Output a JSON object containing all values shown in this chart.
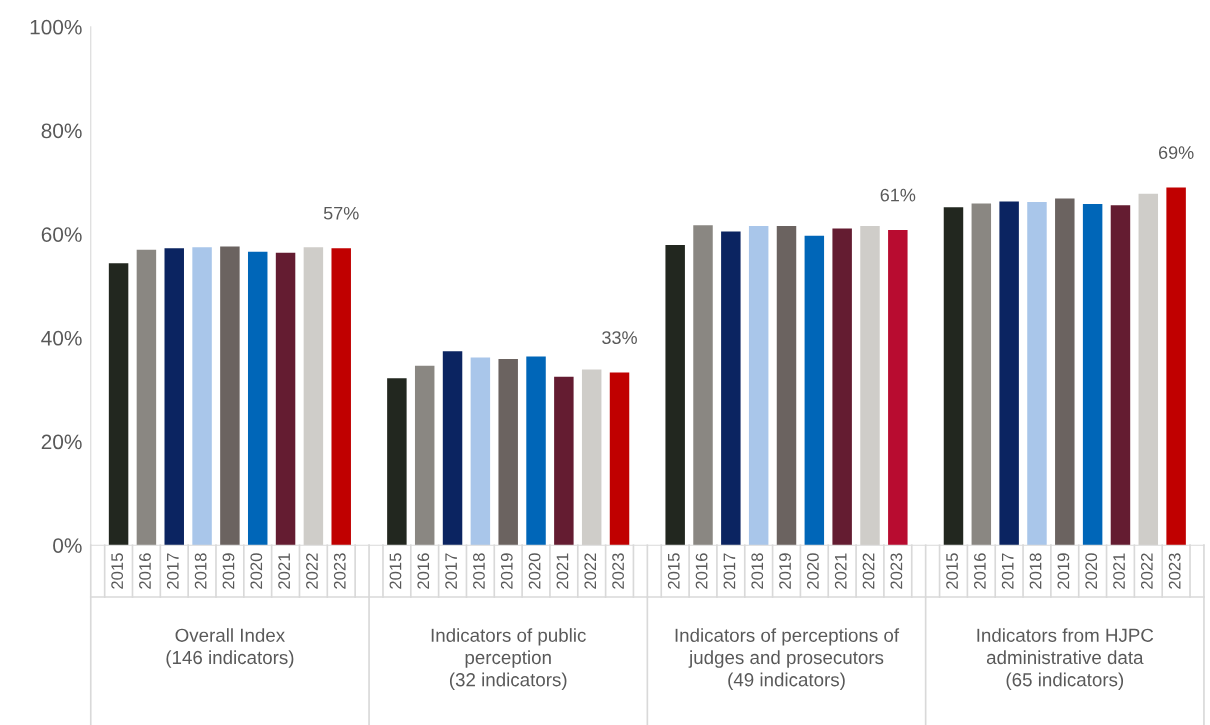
{
  "chart_data": {
    "type": "bar",
    "categories": [
      "Overall Index\n(146 indicators)",
      "Indicators of public\nperception\n(32 indicators)",
      "Indicators of perceptions of\njudges and prosecutors\n(49 indicators)",
      "Indicators from HJPC\nadministrative data\n(65 indicators)"
    ],
    "series": [
      {
        "name": "2015",
        "color": "#22271f",
        "values": [
          54.4,
          32.2,
          57.9,
          65.2
        ]
      },
      {
        "name": "2016",
        "color": "#8a8782",
        "values": [
          57.0,
          34.6,
          61.7,
          65.9
        ]
      },
      {
        "name": "2017",
        "color": "#0b2461",
        "values": [
          57.3,
          37.4,
          60.5,
          66.3
        ]
      },
      {
        "name": "2018",
        "color": "#a9c6ea",
        "values": [
          57.5,
          36.2,
          61.6,
          66.2
        ]
      },
      {
        "name": "2019",
        "color": "#6b6360",
        "values": [
          57.6,
          35.9,
          61.6,
          66.9
        ]
      },
      {
        "name": "2020",
        "color": "#0066b8",
        "values": [
          56.6,
          36.4,
          59.7,
          65.8
        ]
      },
      {
        "name": "2021",
        "color": "#641c31",
        "values": [
          56.4,
          32.5,
          61.1,
          65.6
        ]
      },
      {
        "name": "2022",
        "color": "#cfcdc9",
        "values": [
          57.5,
          33.9,
          61.6,
          67.8
        ]
      },
      {
        "name": "2023",
        "colors": [
          "#c00000",
          "#c00000",
          "#b80c30",
          "#c00000"
        ],
        "values": [
          57.3,
          33.3,
          60.8,
          69.0
        ],
        "value_labels": [
          "57%",
          "33%",
          "61%",
          "69%"
        ]
      }
    ],
    "ylim": [
      0,
      100
    ],
    "yticks": [
      {
        "value": 0,
        "label": "0%"
      },
      {
        "value": 20,
        "label": "20%"
      },
      {
        "value": 40,
        "label": "40%"
      },
      {
        "value": 60,
        "label": "60%"
      },
      {
        "value": 80,
        "label": "80%"
      },
      {
        "value": 100,
        "label": "100%"
      }
    ],
    "grid": false,
    "legend": false
  }
}
